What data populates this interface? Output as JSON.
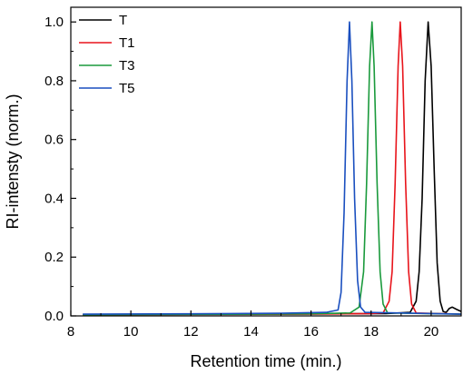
{
  "chart_data": {
    "type": "line",
    "title": "",
    "xlabel": "Retention time (min.)",
    "ylabel": "RI-intensty (norm.)",
    "xlim": [
      8,
      21
    ],
    "ylim": [
      0,
      1.05
    ],
    "x_ticks": [
      8,
      10,
      12,
      14,
      16,
      18,
      20
    ],
    "x_tick_labels": [
      "8",
      "10",
      "12",
      "14",
      "16",
      "18",
      "20"
    ],
    "y_ticks": [
      0.0,
      0.2,
      0.4,
      0.6,
      0.8,
      1.0
    ],
    "y_tick_labels": [
      "0.0",
      "0.2",
      "0.4",
      "0.6",
      "0.8",
      "1.0"
    ],
    "grid": false,
    "legend_position": "top-left",
    "series": [
      {
        "name": "T",
        "color": "#000000",
        "points": [
          [
            8.4,
            0.005
          ],
          [
            12,
            0.006
          ],
          [
            16,
            0.007
          ],
          [
            18.5,
            0.008
          ],
          [
            19.3,
            0.012
          ],
          [
            19.5,
            0.05
          ],
          [
            19.6,
            0.15
          ],
          [
            19.7,
            0.4
          ],
          [
            19.8,
            0.8
          ],
          [
            19.9,
            1.0
          ],
          [
            20.0,
            0.85
          ],
          [
            20.1,
            0.5
          ],
          [
            20.2,
            0.18
          ],
          [
            20.3,
            0.05
          ],
          [
            20.4,
            0.015
          ],
          [
            20.5,
            0.012
          ],
          [
            20.6,
            0.025
          ],
          [
            20.7,
            0.03
          ],
          [
            20.85,
            0.022
          ],
          [
            21,
            0.015
          ]
        ]
      },
      {
        "name": "T1",
        "color": "#e8141b",
        "points": [
          [
            8.4,
            0.004
          ],
          [
            12,
            0.005
          ],
          [
            16,
            0.006
          ],
          [
            18.0,
            0.008
          ],
          [
            18.4,
            0.01
          ],
          [
            18.6,
            0.05
          ],
          [
            18.7,
            0.15
          ],
          [
            18.8,
            0.45
          ],
          [
            18.9,
            0.85
          ],
          [
            18.97,
            1.0
          ],
          [
            19.05,
            0.85
          ],
          [
            19.15,
            0.45
          ],
          [
            19.25,
            0.15
          ],
          [
            19.35,
            0.04
          ],
          [
            19.5,
            0.01
          ],
          [
            21,
            0.006
          ]
        ]
      },
      {
        "name": "T3",
        "color": "#1a9a3c",
        "points": [
          [
            8.4,
            0.004
          ],
          [
            12,
            0.005
          ],
          [
            16,
            0.007
          ],
          [
            17.3,
            0.01
          ],
          [
            17.6,
            0.03
          ],
          [
            17.75,
            0.15
          ],
          [
            17.85,
            0.45
          ],
          [
            17.95,
            0.85
          ],
          [
            18.03,
            1.0
          ],
          [
            18.1,
            0.85
          ],
          [
            18.2,
            0.45
          ],
          [
            18.3,
            0.15
          ],
          [
            18.4,
            0.04
          ],
          [
            18.55,
            0.01
          ],
          [
            21,
            0.006
          ]
        ]
      },
      {
        "name": "T5",
        "color": "#1a4fbf",
        "points": [
          [
            8.4,
            0.006
          ],
          [
            12,
            0.007
          ],
          [
            15,
            0.009
          ],
          [
            16.5,
            0.012
          ],
          [
            16.9,
            0.02
          ],
          [
            17.0,
            0.08
          ],
          [
            17.1,
            0.35
          ],
          [
            17.2,
            0.8
          ],
          [
            17.28,
            1.0
          ],
          [
            17.36,
            0.8
          ],
          [
            17.45,
            0.4
          ],
          [
            17.55,
            0.12
          ],
          [
            17.65,
            0.03
          ],
          [
            17.8,
            0.012
          ],
          [
            21,
            0.006
          ]
        ]
      }
    ]
  }
}
